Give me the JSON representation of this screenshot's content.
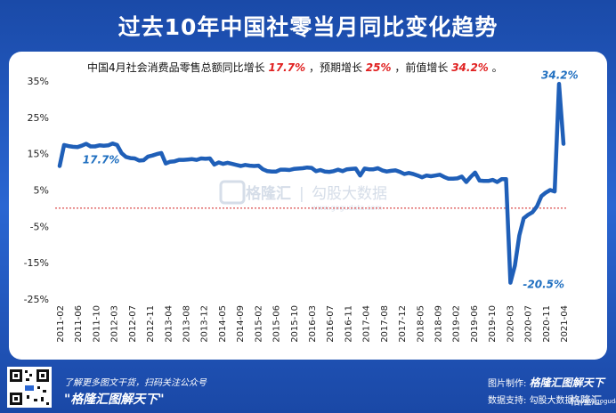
{
  "header": {
    "title": "过去10年中国社零当月同比变化趋势"
  },
  "chart_data": {
    "type": "line",
    "title": "过去10年中国社零当月同比变化趋势",
    "subtitle": {
      "prefix": "中国4月社会消费品零售总额同比增长",
      "actual": "17.7%",
      "mid1": "，预期增长",
      "expected": "25%",
      "mid2": "，前值增长",
      "previous": "34.2%",
      "suffix": "。"
    },
    "ylim": [
      -25,
      35
    ],
    "yticks": [
      35,
      25,
      15,
      5,
      -5,
      -15,
      -25
    ],
    "ytick_labels": [
      "35%",
      "25%",
      "15%",
      "5%",
      "-5%",
      "-15%",
      "-25%"
    ],
    "xtick_labels": [
      "2011-02",
      "2011-06",
      "2011-10",
      "2012-03",
      "2012-07",
      "2012-11",
      "2013-04",
      "2013-08",
      "2013-12",
      "2014-05",
      "2014-09",
      "2015-02",
      "2015-06",
      "2015-10",
      "2016-03",
      "2016-07",
      "2016-11",
      "2017-04",
      "2017-08",
      "2017-12",
      "2018-05",
      "2018-09",
      "2019-02",
      "2019-06",
      "2019-10",
      "2020-03",
      "2020-07",
      "2020-11",
      "2021-04"
    ],
    "series": [
      {
        "color": "#1f5fb8",
        "values": [
          11.6,
          17.4,
          17.1,
          16.9,
          16.8,
          17.2,
          17.7,
          17.0,
          17.0,
          17.3,
          17.2,
          17.3,
          17.8,
          17.4,
          15.2,
          14.1,
          13.8,
          13.7,
          13.1,
          13.2,
          14.2,
          14.5,
          14.9,
          15.2,
          12.3,
          12.8,
          12.9,
          13.3,
          13.3,
          13.4,
          13.5,
          13.3,
          13.7,
          13.6,
          13.7,
          12.0,
          12.6,
          12.2,
          12.5,
          12.2,
          11.9,
          11.6,
          11.9,
          11.7,
          11.6,
          11.7,
          10.7,
          10.2,
          10.1,
          10.1,
          10.6,
          10.6,
          10.5,
          10.8,
          10.9,
          11.0,
          11.2,
          11.1,
          10.2,
          10.5,
          10.1,
          10.0,
          10.2,
          10.6,
          10.2,
          10.7,
          10.8,
          10.9,
          9.0,
          10.9,
          10.7,
          10.7,
          11.0,
          10.4,
          10.1,
          10.3,
          10.4,
          10.0,
          9.4,
          9.7,
          9.4,
          9.0,
          8.5,
          9.0,
          8.8,
          9.0,
          9.2,
          8.6,
          8.1,
          8.1,
          8.2,
          8.7,
          7.2,
          8.6,
          9.8,
          7.6,
          7.5,
          7.5,
          7.8,
          7.2,
          8.0,
          8.0,
          -20.5,
          -15.8,
          -7.5,
          -2.8,
          -1.8,
          -1.1,
          0.5,
          3.3,
          4.3,
          5.0,
          4.6,
          34.2,
          17.7
        ]
      }
    ],
    "annotations": [
      {
        "text": "34.2%",
        "value": 34.2
      },
      {
        "text": "17.7%",
        "value": 17.7
      },
      {
        "text": "-20.5%",
        "value": -20.5
      }
    ],
    "reference_line": {
      "value": 0,
      "style": "dotted",
      "color": "#d22020"
    },
    "watermark": [
      "格隆汇",
      "|",
      "勾股大数据",
      "www.gogudata.com"
    ]
  },
  "footer": {
    "slogan1": "了解更多图文干货，扫码关注公众号",
    "slogan2": "\"格隆汇图解天下\"",
    "credit_label": "图片制作:",
    "credit_brand": "格隆汇图解天下",
    "source_label": "数据支持:",
    "source_brand": "勾股大数据",
    "source_url": "(www.gogudata.com)",
    "corner_logo": "格隆汇"
  },
  "colors": {
    "line": "#1f5fb8",
    "background": "#1a4aa8",
    "subtitle_red": "#e02020",
    "annotation": "#1f6fc0"
  }
}
